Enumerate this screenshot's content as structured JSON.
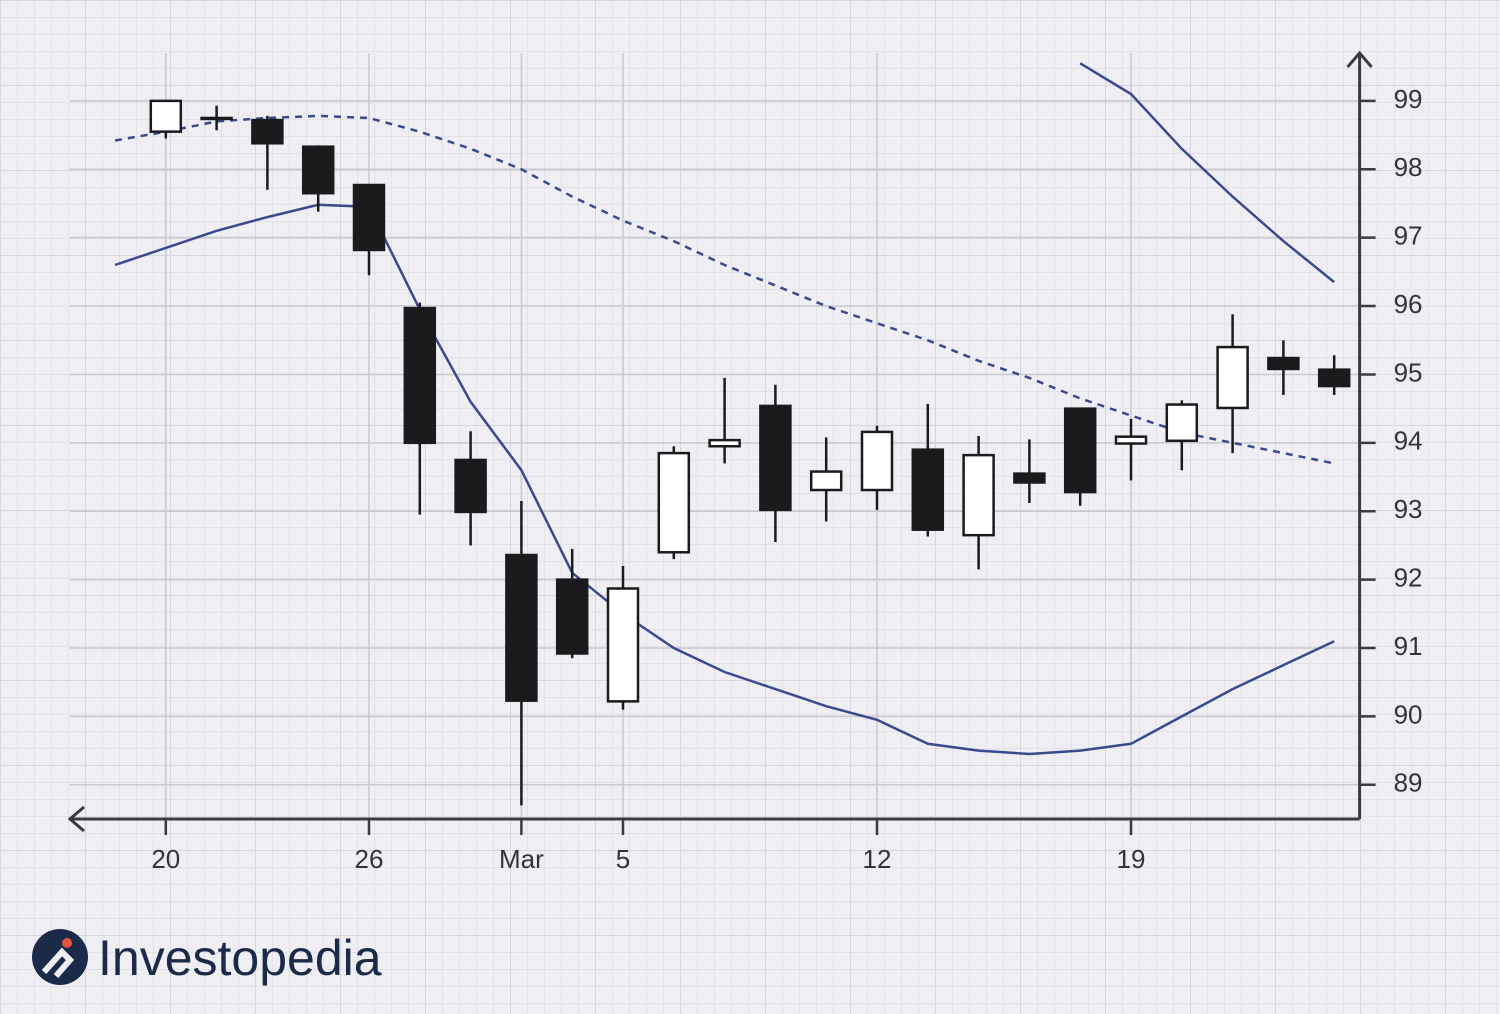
{
  "chart_data": {
    "type": "candlestick",
    "categories": [
      null,
      "20",
      null,
      null,
      null,
      "26",
      null,
      null,
      "Mar",
      null,
      "5",
      null,
      null,
      null,
      null,
      "12",
      null,
      null,
      null,
      null,
      "19",
      null,
      null,
      null,
      null
    ],
    "open": [
      null,
      98.55,
      98.75,
      98.72,
      98.33,
      97.77,
      95.97,
      93.75,
      92.36,
      92.0,
      90.22,
      92.4,
      93.95,
      94.54,
      93.31,
      93.31,
      93.9,
      92.65,
      93.55,
      94.5,
      93.99,
      94.03,
      94.51,
      95.24,
      95.07
    ],
    "high": [
      null,
      99.0,
      98.93,
      98.78,
      98.35,
      97.77,
      96.05,
      94.17,
      93.15,
      92.45,
      92.2,
      93.95,
      94.95,
      94.85,
      94.08,
      94.25,
      94.57,
      94.1,
      94.05,
      94.5,
      94.35,
      94.62,
      95.88,
      95.5,
      95.28
    ],
    "low": [
      null,
      98.45,
      98.57,
      97.7,
      97.38,
      96.45,
      92.95,
      92.5,
      88.7,
      90.85,
      90.1,
      92.3,
      93.7,
      92.55,
      92.85,
      93.02,
      92.63,
      92.15,
      93.12,
      93.08,
      93.45,
      93.6,
      93.85,
      94.7,
      94.7
    ],
    "close": [
      null,
      99.0,
      98.75,
      98.38,
      97.65,
      96.82,
      94.0,
      92.99,
      90.23,
      90.92,
      91.87,
      93.85,
      94.04,
      93.02,
      93.58,
      94.16,
      92.73,
      93.82,
      93.42,
      93.28,
      94.09,
      94.56,
      95.4,
      95.08,
      94.83
    ],
    "up_color": "#ffffff",
    "down_color": "#1b1a1c",
    "overlays": [
      {
        "color": "#3b4a8e",
        "dashed": false,
        "values": [
          null,
          null,
          null,
          null,
          null,
          null,
          null,
          null,
          null,
          null,
          null,
          null,
          null,
          null,
          null,
          null,
          null,
          null,
          null,
          99.55,
          99.1,
          98.3,
          97.6,
          96.95,
          96.35
        ]
      },
      {
        "color": "#3b4a8e",
        "dashed": true,
        "values": [
          98.42,
          98.55,
          98.7,
          98.75,
          98.78,
          98.75,
          98.55,
          98.3,
          98.0,
          97.6,
          97.25,
          96.95,
          96.6,
          96.3,
          96.0,
          95.75,
          95.5,
          95.2,
          94.95,
          94.65,
          94.4,
          94.15,
          94.0,
          93.85,
          93.7
        ]
      },
      {
        "color": "#3b4a8e",
        "dashed": false,
        "values": [
          96.6,
          96.85,
          97.1,
          97.3,
          97.48,
          97.45,
          95.95,
          94.6,
          93.6,
          92.1,
          91.5,
          91.0,
          90.65,
          90.4,
          90.15,
          89.95,
          89.6,
          89.5,
          89.45,
          89.5,
          89.6,
          90.0,
          90.4,
          90.75,
          91.1
        ]
      }
    ],
    "ylim": [
      88.5,
      99.7
    ],
    "yticks": [
      89,
      90,
      91,
      92,
      93,
      94,
      95,
      96,
      97,
      98,
      99
    ],
    "grid": true
  },
  "logo": "Investopedia"
}
